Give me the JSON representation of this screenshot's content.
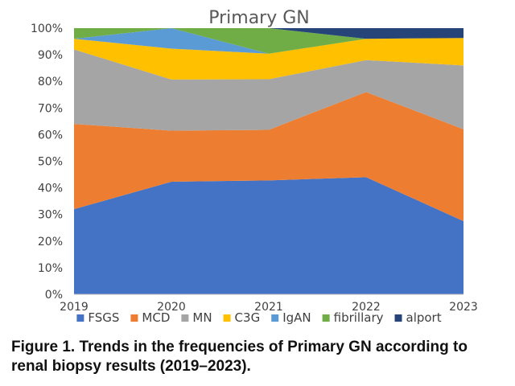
{
  "caption": "Figure 1. Trends in the frequencies of Primary GN according to renal biopsy results (2019–2023).",
  "chart_data": {
    "type": "area",
    "stacked": true,
    "percent_stacked": true,
    "title": "Primary GN",
    "xlabel": "",
    "ylabel": "",
    "x": [
      "2019",
      "2020",
      "2021",
      "2022",
      "2023"
    ],
    "ylim": [
      0,
      100
    ],
    "yticks": [
      "0%",
      "10%",
      "20%",
      "30%",
      "40%",
      "50%",
      "60%",
      "70%",
      "80%",
      "90%",
      "100%"
    ],
    "grid": false,
    "legend": "bottom",
    "series": [
      {
        "name": "FSGS",
        "color": "#4472C4",
        "values": [
          32,
          42.3,
          42.8,
          44,
          27.5
        ]
      },
      {
        "name": "MCD",
        "color": "#ED7D31",
        "values": [
          32,
          19.2,
          19,
          32,
          34.5
        ]
      },
      {
        "name": "MN",
        "color": "#A5A5A5",
        "values": [
          28,
          19.2,
          19,
          12,
          24
        ]
      },
      {
        "name": "C3G",
        "color": "#FFC000",
        "values": [
          4,
          11.6,
          9.6,
          8,
          10.3
        ]
      },
      {
        "name": "IgAN",
        "color": "#5B9BD5",
        "values": [
          0,
          7.7,
          0,
          0,
          0
        ]
      },
      {
        "name": "fibrillary",
        "color": "#70AD47",
        "values": [
          4,
          0,
          9.6,
          0,
          0
        ]
      },
      {
        "name": "alport",
        "color": "#264478",
        "values": [
          0,
          0,
          0,
          4,
          3.7
        ]
      }
    ]
  }
}
